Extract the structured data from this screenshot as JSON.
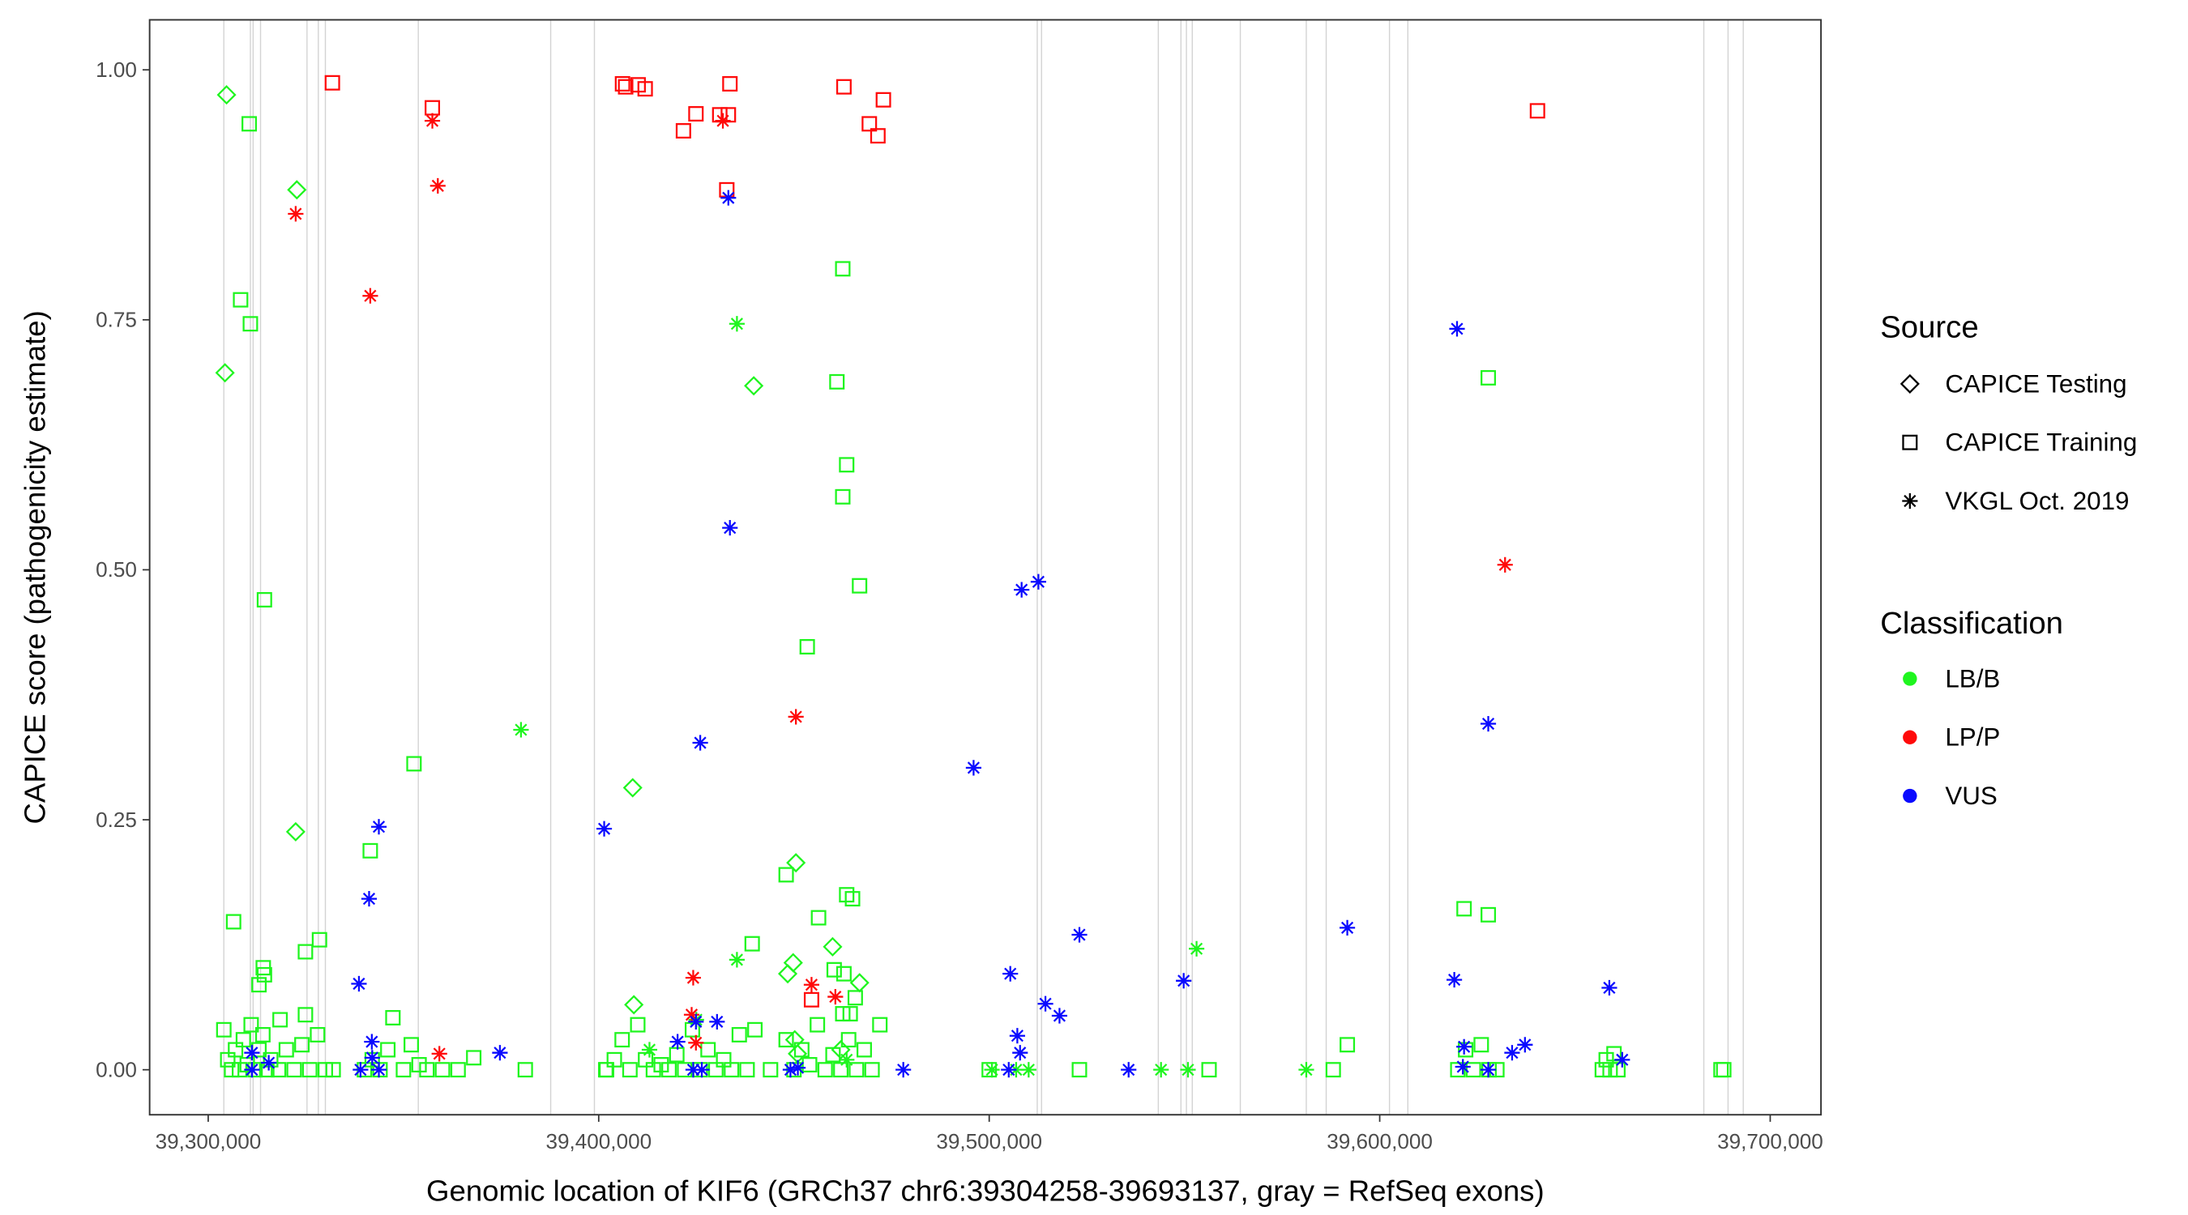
{
  "chart_data": {
    "type": "scatter",
    "xlabel": "Genomic location of KIF6 (GRCh37 chr6:39304258-39693137, gray = RefSeq exons)",
    "ylabel": "CAPICE score (pathogenicity estimate)",
    "xlim": [
      39285000,
      39713000
    ],
    "ylim": [
      -0.045,
      1.05
    ],
    "x_ticks": [
      39300000,
      39400000,
      39500000,
      39600000,
      39700000
    ],
    "x_tick_labels": [
      "39,300,000",
      "39,400,000",
      "39,500,000",
      "39,600,000",
      "39,700,000"
    ],
    "y_ticks": [
      0,
      0.25,
      0.5,
      0.75,
      1.0
    ],
    "y_tick_labels": [
      "0.00",
      "0.25",
      "0.50",
      "0.75",
      "1.00"
    ],
    "grid": false,
    "exon_color": "#d3d3d3",
    "exons": [
      39304000,
      39310800,
      39311500,
      39313400,
      39325300,
      39328200,
      39330000,
      39353800,
      39387700,
      39398900,
      39512300,
      39513400,
      39543300,
      39549100,
      39550500,
      39552000,
      39564300,
      39581200,
      39586300,
      39602500,
      39607200,
      39683000,
      39689200,
      39693100
    ],
    "legend": {
      "placement": "right",
      "source_title": "Source",
      "sources": [
        "CAPICE Testing",
        "CAPICE Training",
        "VKGL Oct. 2019"
      ],
      "source_shapes": [
        "diamond",
        "square",
        "asterisk"
      ],
      "class_title": "Classification",
      "classes": [
        "LB/B",
        "LP/P",
        "VUS"
      ],
      "class_colors": [
        "#1ff51f",
        "#ff0a0a",
        "#0a0aff"
      ]
    },
    "point_format": [
      "genomic_location",
      "capice_score",
      "source_index",
      "class_index"
    ],
    "points": [
      [
        39304700,
        0.975,
        0,
        0
      ],
      [
        39322700,
        0.88,
        0,
        0
      ],
      [
        39304300,
        0.697,
        0,
        0
      ],
      [
        39439700,
        0.684,
        0,
        0
      ],
      [
        39408700,
        0.282,
        0,
        0
      ],
      [
        39322400,
        0.238,
        0,
        0
      ],
      [
        39450500,
        0.207,
        0,
        0
      ],
      [
        39449800,
        0.107,
        0,
        0
      ],
      [
        39448400,
        0.096,
        0,
        0
      ],
      [
        39459900,
        0.123,
        0,
        0
      ],
      [
        39466800,
        0.087,
        0,
        0
      ],
      [
        39409000,
        0.065,
        0,
        0
      ],
      [
        39450200,
        0.03,
        0,
        0
      ],
      [
        39450900,
        0.016,
        0,
        0
      ],
      [
        39462000,
        0.02,
        0,
        0
      ],
      [
        39310500,
        0.946,
        1,
        0
      ],
      [
        39308300,
        0.77,
        1,
        0
      ],
      [
        39310800,
        0.746,
        1,
        0
      ],
      [
        39314400,
        0.47,
        1,
        0
      ],
      [
        39306500,
        0.148,
        1,
        0
      ],
      [
        39352700,
        0.306,
        1,
        0
      ],
      [
        39341500,
        0.219,
        1,
        0
      ],
      [
        39462500,
        0.801,
        1,
        0
      ],
      [
        39461000,
        0.688,
        1,
        0
      ],
      [
        39463500,
        0.605,
        1,
        0
      ],
      [
        39462500,
        0.573,
        1,
        0
      ],
      [
        39466800,
        0.484,
        1,
        0
      ],
      [
        39453400,
        0.423,
        1,
        0
      ],
      [
        39627800,
        0.692,
        1,
        0
      ],
      [
        39621600,
        0.161,
        1,
        0
      ],
      [
        39627800,
        0.155,
        1,
        0
      ],
      [
        39448000,
        0.195,
        1,
        0
      ],
      [
        39463500,
        0.175,
        1,
        0
      ],
      [
        39465000,
        0.171,
        1,
        0
      ],
      [
        39456300,
        0.152,
        1,
        0
      ],
      [
        39439300,
        0.126,
        1,
        0
      ],
      [
        39328500,
        0.13,
        1,
        0
      ],
      [
        39324900,
        0.118,
        1,
        0
      ],
      [
        39314100,
        0.102,
        1,
        0
      ],
      [
        39314400,
        0.095,
        1,
        0
      ],
      [
        39313000,
        0.085,
        1,
        0
      ],
      [
        39318400,
        0.05,
        1,
        0
      ],
      [
        39324900,
        0.055,
        1,
        0
      ],
      [
        39347300,
        0.052,
        1,
        0
      ],
      [
        39460300,
        0.1,
        1,
        0
      ],
      [
        39462800,
        0.096,
        1,
        0
      ],
      [
        39462500,
        0.056,
        1,
        0
      ],
      [
        39464400,
        0.056,
        1,
        0
      ],
      [
        39465700,
        0.072,
        1,
        0
      ],
      [
        39591700,
        0.025,
        1,
        0
      ],
      [
        39588100,
        0.0,
        1,
        0
      ],
      [
        39556300,
        0.0,
        1,
        0
      ],
      [
        39523100,
        0.0,
        1,
        0
      ],
      [
        39687400,
        0.0,
        1,
        0
      ],
      [
        39688100,
        0.0,
        1,
        0
      ],
      [
        39381200,
        0.0,
        1,
        0
      ],
      [
        39401800,
        0.0,
        1,
        0
      ],
      [
        39500000,
        0.0,
        1,
        0
      ],
      [
        39304000,
        0.04,
        1,
        0
      ],
      [
        39305000,
        0.01,
        1,
        0
      ],
      [
        39306000,
        0.0,
        1,
        0
      ],
      [
        39307000,
        0.02,
        1,
        0
      ],
      [
        39308000,
        0.0,
        1,
        0
      ],
      [
        39309000,
        0.03,
        1,
        0
      ],
      [
        39310000,
        0.005,
        1,
        0
      ],
      [
        39311000,
        0.045,
        1,
        0
      ],
      [
        39312000,
        0.0,
        1,
        0
      ],
      [
        39313000,
        0.02,
        1,
        0
      ],
      [
        39314000,
        0.035,
        1,
        0
      ],
      [
        39315000,
        0.0,
        1,
        0
      ],
      [
        39316000,
        0.01,
        1,
        0
      ],
      [
        39318000,
        0.0,
        1,
        0
      ],
      [
        39320000,
        0.02,
        1,
        0
      ],
      [
        39322000,
        0.0,
        1,
        0
      ],
      [
        39324000,
        0.025,
        1,
        0
      ],
      [
        39326000,
        0.0,
        1,
        0
      ],
      [
        39328000,
        0.035,
        1,
        0
      ],
      [
        39330000,
        0.0,
        1,
        0
      ],
      [
        39332000,
        0.0,
        1,
        0
      ],
      [
        39340000,
        0.0,
        1,
        0
      ],
      [
        39342000,
        0.01,
        1,
        0
      ],
      [
        39344000,
        0.0,
        1,
        0
      ],
      [
        39346000,
        0.02,
        1,
        0
      ],
      [
        39350000,
        0.0,
        1,
        0
      ],
      [
        39352000,
        0.025,
        1,
        0
      ],
      [
        39354000,
        0.005,
        1,
        0
      ],
      [
        39356000,
        0.0,
        1,
        0
      ],
      [
        39360000,
        0.0,
        1,
        0
      ],
      [
        39364000,
        0.0,
        1,
        0
      ],
      [
        39368000,
        0.012,
        1,
        0
      ],
      [
        39402000,
        0.0,
        1,
        0
      ],
      [
        39404000,
        0.01,
        1,
        0
      ],
      [
        39406000,
        0.03,
        1,
        0
      ],
      [
        39408000,
        0.0,
        1,
        0
      ],
      [
        39410000,
        0.045,
        1,
        0
      ],
      [
        39412000,
        0.01,
        1,
        0
      ],
      [
        39414000,
        0.0,
        1,
        0
      ],
      [
        39416000,
        0.005,
        1,
        0
      ],
      [
        39418000,
        0.0,
        1,
        0
      ],
      [
        39420000,
        0.015,
        1,
        0
      ],
      [
        39422000,
        0.0,
        1,
        0
      ],
      [
        39424000,
        0.04,
        1,
        0
      ],
      [
        39426000,
        0.0,
        1,
        0
      ],
      [
        39428000,
        0.02,
        1,
        0
      ],
      [
        39430000,
        0.0,
        1,
        0
      ],
      [
        39432000,
        0.01,
        1,
        0
      ],
      [
        39434000,
        0.0,
        1,
        0
      ],
      [
        39436000,
        0.035,
        1,
        0
      ],
      [
        39438000,
        0.0,
        1,
        0
      ],
      [
        39440000,
        0.04,
        1,
        0
      ],
      [
        39444000,
        0.0,
        1,
        0
      ],
      [
        39448000,
        0.03,
        1,
        0
      ],
      [
        39450000,
        0.0,
        1,
        0
      ],
      [
        39452000,
        0.02,
        1,
        0
      ],
      [
        39454000,
        0.005,
        1,
        0
      ],
      [
        39456000,
        0.045,
        1,
        0
      ],
      [
        39458000,
        0.0,
        1,
        0
      ],
      [
        39460000,
        0.015,
        1,
        0
      ],
      [
        39462000,
        0.0,
        1,
        0
      ],
      [
        39464000,
        0.03,
        1,
        0
      ],
      [
        39466000,
        0.0,
        1,
        0
      ],
      [
        39468000,
        0.02,
        1,
        0
      ],
      [
        39470000,
        0.0,
        1,
        0
      ],
      [
        39472000,
        0.045,
        1,
        0
      ],
      [
        39620000,
        0.0,
        1,
        0
      ],
      [
        39622000,
        0.02,
        1,
        0
      ],
      [
        39624000,
        0.0,
        1,
        0
      ],
      [
        39626000,
        0.025,
        1,
        0
      ],
      [
        39628000,
        0.0,
        1,
        0
      ],
      [
        39630000,
        0.0,
        1,
        0
      ],
      [
        39657000,
        0.0,
        1,
        0
      ],
      [
        39658000,
        0.01,
        1,
        0
      ],
      [
        39659000,
        0.0,
        1,
        0
      ],
      [
        39660000,
        0.016,
        1,
        0
      ],
      [
        39661000,
        0.0,
        1,
        0
      ],
      [
        39435400,
        0.746,
        2,
        0
      ],
      [
        39380100,
        0.34,
        2,
        0
      ],
      [
        39435400,
        0.11,
        2,
        0
      ],
      [
        39553100,
        0.121,
        2,
        0
      ],
      [
        39510100,
        0.0,
        2,
        0
      ],
      [
        39544000,
        0.0,
        2,
        0
      ],
      [
        39550900,
        0.0,
        2,
        0
      ],
      [
        39581200,
        0.0,
        2,
        0
      ],
      [
        39500700,
        0.0,
        2,
        0
      ],
      [
        39506900,
        0.0,
        2,
        0
      ],
      [
        39413000,
        0.02,
        2,
        0
      ],
      [
        39463500,
        0.01,
        2,
        0
      ],
      [
        39425000,
        0.05,
        2,
        0
      ],
      [
        39331800,
        0.987,
        1,
        1
      ],
      [
        39357400,
        0.962,
        1,
        1
      ],
      [
        39406100,
        0.986,
        1,
        1
      ],
      [
        39406900,
        0.983,
        1,
        1
      ],
      [
        39410100,
        0.985,
        1,
        1
      ],
      [
        39411900,
        0.981,
        1,
        1
      ],
      [
        39433600,
        0.986,
        1,
        1
      ],
      [
        39462800,
        0.983,
        1,
        1
      ],
      [
        39472900,
        0.97,
        1,
        1
      ],
      [
        39421700,
        0.939,
        1,
        1
      ],
      [
        39424900,
        0.956,
        1,
        1
      ],
      [
        39431000,
        0.955,
        1,
        1
      ],
      [
        39433200,
        0.955,
        1,
        1
      ],
      [
        39469300,
        0.946,
        1,
        1
      ],
      [
        39471500,
        0.934,
        1,
        1
      ],
      [
        39432800,
        0.88,
        1,
        1
      ],
      [
        39640400,
        0.959,
        1,
        1
      ],
      [
        39454500,
        0.07,
        1,
        1
      ],
      [
        39357400,
        0.949,
        2,
        1
      ],
      [
        39358800,
        0.884,
        2,
        1
      ],
      [
        39322400,
        0.856,
        2,
        1
      ],
      [
        39341500,
        0.774,
        2,
        1
      ],
      [
        39431800,
        0.949,
        2,
        1
      ],
      [
        39450500,
        0.353,
        2,
        1
      ],
      [
        39632100,
        0.505,
        2,
        1
      ],
      [
        39424200,
        0.092,
        2,
        1
      ],
      [
        39454500,
        0.085,
        2,
        1
      ],
      [
        39460600,
        0.073,
        2,
        1
      ],
      [
        39423800,
        0.055,
        2,
        1
      ],
      [
        39424900,
        0.027,
        2,
        1
      ],
      [
        39359200,
        0.016,
        2,
        1
      ],
      [
        39433200,
        0.872,
        2,
        2
      ],
      [
        39433600,
        0.542,
        2,
        2
      ],
      [
        39619800,
        0.741,
        2,
        2
      ],
      [
        39627800,
        0.346,
        2,
        2
      ],
      [
        39512600,
        0.488,
        2,
        2
      ],
      [
        39508300,
        0.48,
        2,
        2
      ],
      [
        39496000,
        0.302,
        2,
        2
      ],
      [
        39426000,
        0.327,
        2,
        2
      ],
      [
        39401400,
        0.241,
        2,
        2
      ],
      [
        39343700,
        0.243,
        2,
        2
      ],
      [
        39341200,
        0.171,
        2,
        2
      ],
      [
        39338600,
        0.086,
        2,
        2
      ],
      [
        39523100,
        0.135,
        2,
        2
      ],
      [
        39591700,
        0.142,
        2,
        2
      ],
      [
        39549800,
        0.089,
        2,
        2
      ],
      [
        39505400,
        0.096,
        2,
        2
      ],
      [
        39514400,
        0.066,
        2,
        2
      ],
      [
        39518000,
        0.054,
        2,
        2
      ],
      [
        39619100,
        0.09,
        2,
        2
      ],
      [
        39658800,
        0.082,
        2,
        2
      ],
      [
        39507200,
        0.034,
        2,
        2
      ],
      [
        39507900,
        0.017,
        2,
        2
      ],
      [
        39637200,
        0.025,
        2,
        2
      ],
      [
        39633900,
        0.017,
        2,
        2
      ],
      [
        39621600,
        0.023,
        2,
        2
      ],
      [
        39420200,
        0.028,
        2,
        2
      ],
      [
        39430300,
        0.048,
        2,
        2
      ],
      [
        39424900,
        0.048,
        2,
        2
      ],
      [
        39341900,
        0.028,
        2,
        2
      ],
      [
        39374700,
        0.017,
        2,
        2
      ],
      [
        39311200,
        0.017,
        2,
        2
      ],
      [
        39315500,
        0.007,
        2,
        2
      ],
      [
        39311200,
        0.0,
        2,
        2
      ],
      [
        39339000,
        0.0,
        2,
        2
      ],
      [
        39343700,
        0.0,
        2,
        2
      ],
      [
        39426400,
        0.0,
        2,
        2
      ],
      [
        39449100,
        0.0,
        2,
        2
      ],
      [
        39478000,
        0.0,
        2,
        2
      ],
      [
        39535700,
        0.0,
        2,
        2
      ],
      [
        39621300,
        0.003,
        2,
        2
      ],
      [
        39627800,
        0.0,
        2,
        2
      ],
      [
        39662100,
        0.01,
        2,
        2
      ],
      [
        39505000,
        0.0,
        2,
        2
      ],
      [
        39424200,
        0.0,
        2,
        2
      ],
      [
        39342000,
        0.012,
        2,
        2
      ],
      [
        39451000,
        0.002,
        2,
        2
      ]
    ]
  }
}
